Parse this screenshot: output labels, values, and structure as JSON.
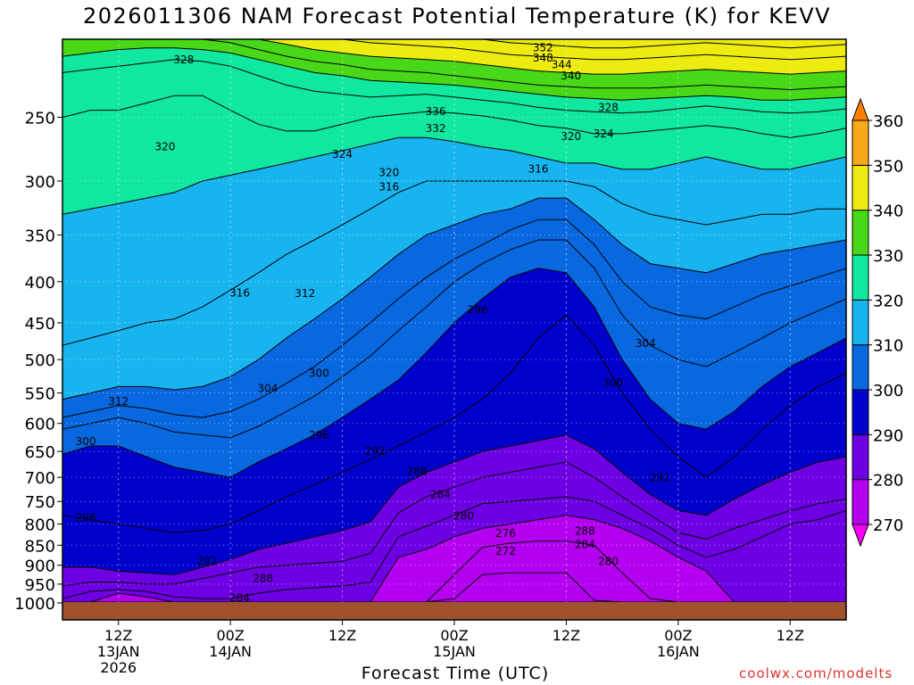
{
  "title": "2026011306 NAM Forecast Potential Temperature (K) for KEVV",
  "xlabel": "Forecast Time (UTC)",
  "credit": "coolwx.com/modelts",
  "chart_data": {
    "type": "contour-filled",
    "title": "2026011306 NAM Forecast Potential Temperature (K) for KEVV",
    "xlabel": "Forecast Time (UTC)",
    "ylabel": "",
    "x_units": "forecast hour from 06Z 13JAN2026",
    "xlim": [
      0,
      84
    ],
    "y_axis": "pressure (hPa), log scale, inverted",
    "ylim": [
      1000,
      200
    ],
    "y_ticks": [
      250,
      300,
      350,
      400,
      450,
      500,
      550,
      600,
      650,
      700,
      750,
      800,
      850,
      900,
      950,
      1000
    ],
    "x_ticks": [
      {
        "hour": 6,
        "line1": "12Z",
        "line2": "13JAN",
        "line3": "2026"
      },
      {
        "hour": 18,
        "line1": "00Z",
        "line2": "14JAN",
        "line3": ""
      },
      {
        "hour": 30,
        "line1": "12Z",
        "line2": "",
        "line3": ""
      },
      {
        "hour": 42,
        "line1": "00Z",
        "line2": "15JAN",
        "line3": ""
      },
      {
        "hour": 54,
        "line1": "12Z",
        "line2": "",
        "line3": ""
      },
      {
        "hour": 66,
        "line1": "00Z",
        "line2": "16JAN",
        "line3": ""
      },
      {
        "hour": 78,
        "line1": "12Z",
        "line2": "",
        "line3": ""
      }
    ],
    "colorbar": {
      "levels": [
        270,
        280,
        290,
        300,
        310,
        320,
        330,
        340,
        350,
        360
      ],
      "colors": [
        "#f800f8",
        "#b400f0",
        "#6e00e4",
        "#0000cc",
        "#0868e0",
        "#18b4f0",
        "#10e8a0",
        "#48d818",
        "#ecec10",
        "#f8a818",
        "#ff8000"
      ]
    },
    "isentropes": [
      {
        "theta": 270,
        "p": [
          1000,
          1000,
          1000,
          1000,
          1000,
          1000,
          1000,
          1000,
          1000,
          1000,
          1000,
          1000,
          1000,
          1000,
          1000,
          1000,
          1000,
          1000,
          1000,
          1000,
          1000,
          1000,
          1000,
          1000,
          1000,
          1000,
          1000,
          1000,
          1000
        ]
      },
      {
        "theta": 272,
        "p": [
          1000,
          1000,
          1000,
          1000,
          1000,
          1000,
          1000,
          1000,
          1000,
          1000,
          1000,
          1000,
          1000,
          1000,
          990,
          925,
          920,
          920,
          920,
          995,
          1000,
          1000,
          1000,
          1000,
          1000,
          1000,
          1000,
          1000,
          1000
        ]
      },
      {
        "theta": 276,
        "p": [
          1000,
          1000,
          1000,
          1000,
          1000,
          1000,
          1000,
          1000,
          1000,
          1000,
          1000,
          1000,
          1000,
          1000,
          925,
          855,
          845,
          840,
          840,
          850,
          920,
          990,
          1000,
          1000,
          1000,
          1000,
          1000,
          1000,
          1000
        ]
      },
      {
        "theta": 280,
        "p": [
          1000,
          1000,
          975,
          985,
          1000,
          1000,
          1000,
          1000,
          1000,
          1000,
          1000,
          1000,
          880,
          860,
          830,
          810,
          800,
          790,
          780,
          790,
          810,
          840,
          880,
          915,
          1000,
          1000,
          1000,
          1000,
          1000
        ]
      },
      {
        "theta": 284,
        "p": [
          990,
          970,
          965,
          970,
          985,
          990,
          990,
          975,
          965,
          960,
          955,
          945,
          830,
          805,
          780,
          755,
          750,
          745,
          740,
          750,
          780,
          810,
          850,
          880,
          860,
          830,
          800,
          790,
          770
        ]
      },
      {
        "theta": 288,
        "p": [
          955,
          945,
          945,
          950,
          950,
          935,
          920,
          905,
          900,
          895,
          890,
          870,
          775,
          740,
          720,
          700,
          690,
          680,
          670,
          700,
          740,
          780,
          820,
          835,
          810,
          790,
          770,
          755,
          745
        ]
      },
      {
        "theta": 292,
        "p": [
          905,
          905,
          915,
          920,
          925,
          905,
          885,
          860,
          845,
          830,
          815,
          795,
          720,
          690,
          670,
          650,
          640,
          630,
          620,
          645,
          690,
          735,
          770,
          780,
          745,
          715,
          690,
          670,
          660
        ]
      },
      {
        "theta": 296,
        "p": [
          780,
          790,
          800,
          810,
          820,
          815,
          800,
          770,
          740,
          715,
          690,
          665,
          640,
          615,
          590,
          560,
          520,
          470,
          440,
          480,
          550,
          610,
          660,
          700,
          660,
          610,
          570,
          540,
          520
        ]
      },
      {
        "theta": 300,
        "p": [
          655,
          640,
          640,
          660,
          680,
          690,
          700,
          670,
          645,
          620,
          590,
          560,
          530,
          490,
          450,
          420,
          395,
          385,
          390,
          430,
          500,
          560,
          600,
          610,
          580,
          540,
          510,
          490,
          470
        ]
      },
      {
        "theta": 304,
        "p": [
          610,
          600,
          590,
          600,
          615,
          620,
          625,
          605,
          580,
          555,
          525,
          495,
          460,
          430,
          400,
          380,
          365,
          355,
          355,
          385,
          440,
          480,
          500,
          510,
          490,
          470,
          450,
          435,
          420
        ]
      },
      {
        "theta": 308,
        "p": [
          590,
          580,
          570,
          575,
          585,
          590,
          580,
          560,
          535,
          510,
          480,
          450,
          420,
          395,
          375,
          360,
          345,
          335,
          335,
          360,
          400,
          430,
          440,
          445,
          430,
          415,
          405,
          395,
          385
        ]
      },
      {
        "theta": 312,
        "p": [
          560,
          550,
          540,
          540,
          545,
          540,
          525,
          500,
          470,
          445,
          420,
          395,
          370,
          350,
          340,
          330,
          325,
          315,
          315,
          335,
          360,
          380,
          385,
          390,
          380,
          370,
          365,
          360,
          355
        ]
      },
      {
        "theta": 316,
        "p": [
          480,
          470,
          460,
          450,
          445,
          430,
          410,
          390,
          370,
          355,
          340,
          325,
          310,
          300,
          300,
          300,
          300,
          300,
          300,
          305,
          320,
          330,
          335,
          340,
          335,
          330,
          330,
          325,
          325
        ]
      },
      {
        "theta": 320,
        "p": [
          330,
          325,
          320,
          315,
          310,
          300,
          295,
          290,
          285,
          280,
          275,
          270,
          265,
          265,
          268,
          272,
          275,
          280,
          285,
          285,
          290,
          290,
          285,
          280,
          285,
          290,
          290,
          285,
          280
        ]
      },
      {
        "theta": 324,
        "p": [
          250,
          245,
          245,
          240,
          235,
          235,
          245,
          255,
          260,
          260,
          255,
          250,
          248,
          246,
          247,
          249,
          252,
          256,
          258,
          262,
          262,
          260,
          258,
          256,
          258,
          262,
          265,
          262,
          258
        ]
      },
      {
        "theta": 328,
        "p": [
          220,
          218,
          216,
          214,
          212,
          213,
          216,
          222,
          228,
          232,
          234,
          236,
          235,
          234,
          236,
          238,
          240,
          243,
          245,
          246,
          247,
          246,
          244,
          242,
          244,
          246,
          247,
          246,
          244
        ]
      },
      {
        "theta": 332,
        "p": [
          210,
          208,
          206,
          205,
          205,
          206,
          208,
          212,
          216,
          220,
          222,
          225,
          226,
          227,
          228,
          230,
          232,
          234,
          236,
          237,
          238,
          237,
          236,
          235,
          236,
          238,
          238,
          237,
          236
        ]
      },
      {
        "theta": 336,
        "p": [
          200,
          200,
          200,
          200,
          200,
          200,
          202,
          206,
          210,
          213,
          215,
          218,
          219,
          220,
          222,
          224,
          226,
          228,
          229,
          230,
          230,
          230,
          229,
          228,
          229,
          230,
          231,
          230,
          229
        ]
      },
      {
        "theta": 340,
        "p": [
          200,
          200,
          200,
          200,
          200,
          200,
          200,
          200,
          203,
          206,
          208,
          210,
          211,
          212,
          213,
          215,
          217,
          219,
          220,
          221,
          221,
          220,
          219,
          218,
          219,
          220,
          221,
          220,
          219
        ]
      },
      {
        "theta": 344,
        "p": [
          200,
          200,
          200,
          200,
          200,
          200,
          200,
          200,
          200,
          200,
          200,
          202,
          203,
          204,
          205,
          207,
          209,
          210,
          211,
          212,
          212,
          211,
          210,
          209,
          210,
          211,
          212,
          211,
          210
        ]
      },
      {
        "theta": 348,
        "p": [
          200,
          200,
          200,
          200,
          200,
          200,
          200,
          200,
          200,
          200,
          200,
          200,
          200,
          200,
          200,
          200,
          202,
          203,
          204,
          205,
          205,
          204,
          203,
          202,
          203,
          204,
          205,
          204,
          203
        ]
      },
      {
        "theta": 352,
        "p": [
          200,
          200,
          200,
          200,
          200,
          200,
          200,
          200,
          200,
          200,
          200,
          200,
          200,
          200,
          200,
          200,
          200,
          200,
          200,
          200,
          200,
          200,
          200,
          200,
          200,
          200,
          200,
          200,
          200
        ]
      }
    ],
    "isentrope_hours": [
      0,
      3,
      6,
      9,
      12,
      15,
      18,
      21,
      24,
      27,
      30,
      33,
      36,
      39,
      42,
      45,
      48,
      51,
      54,
      57,
      60,
      63,
      66,
      69,
      72,
      75,
      78,
      81,
      84
    ],
    "contour_labels": [
      {
        "text": "352",
        "hour": 51.5,
        "p": 205
      },
      {
        "text": "348",
        "hour": 51.5,
        "p": 211
      },
      {
        "text": "344",
        "hour": 53.5,
        "p": 215
      },
      {
        "text": "340",
        "hour": 54.5,
        "p": 222
      },
      {
        "text": "336",
        "hour": 40,
        "p": 246
      },
      {
        "text": "332",
        "hour": 40,
        "p": 258
      },
      {
        "text": "328",
        "hour": 13,
        "p": 212
      },
      {
        "text": "328",
        "hour": 58.5,
        "p": 243
      },
      {
        "text": "324",
        "hour": 30,
        "p": 278
      },
      {
        "text": "324",
        "hour": 58,
        "p": 262
      },
      {
        "text": "320",
        "hour": 11,
        "p": 272
      },
      {
        "text": "320",
        "hour": 35,
        "p": 293
      },
      {
        "text": "320",
        "hour": 54.5,
        "p": 264
      },
      {
        "text": "316",
        "hour": 35,
        "p": 305
      },
      {
        "text": "316",
        "hour": 51,
        "p": 290
      },
      {
        "text": "316",
        "hour": 19,
        "p": 413
      },
      {
        "text": "312",
        "hour": 26,
        "p": 414
      },
      {
        "text": "312",
        "hour": 6,
        "p": 563
      },
      {
        "text": "304",
        "hour": 22,
        "p": 543
      },
      {
        "text": "304",
        "hour": 62.5,
        "p": 477
      },
      {
        "text": "300",
        "hour": 27.5,
        "p": 520
      },
      {
        "text": "300",
        "hour": 59,
        "p": 534
      },
      {
        "text": "300",
        "hour": 2.5,
        "p": 632
      },
      {
        "text": "296",
        "hour": 44.5,
        "p": 434
      },
      {
        "text": "296",
        "hour": 27.5,
        "p": 621
      },
      {
        "text": "296",
        "hour": 2.5,
        "p": 786
      },
      {
        "text": "292",
        "hour": 33.5,
        "p": 650
      },
      {
        "text": "292",
        "hour": 15.5,
        "p": 890
      },
      {
        "text": "292",
        "hour": 64,
        "p": 701
      },
      {
        "text": "288",
        "hour": 38,
        "p": 688
      },
      {
        "text": "288",
        "hour": 21.5,
        "p": 935
      },
      {
        "text": "288",
        "hour": 56,
        "p": 816
      },
      {
        "text": "284",
        "hour": 40.5,
        "p": 735
      },
      {
        "text": "284",
        "hour": 19,
        "p": 988
      },
      {
        "text": "284",
        "hour": 56,
        "p": 848
      },
      {
        "text": "280",
        "hour": 43,
        "p": 782
      },
      {
        "text": "280",
        "hour": 58.5,
        "p": 890
      },
      {
        "text": "276",
        "hour": 47.5,
        "p": 822
      },
      {
        "text": "272",
        "hour": 47.5,
        "p": 865
      }
    ],
    "grid": true,
    "ground_color": "#a0522d"
  }
}
